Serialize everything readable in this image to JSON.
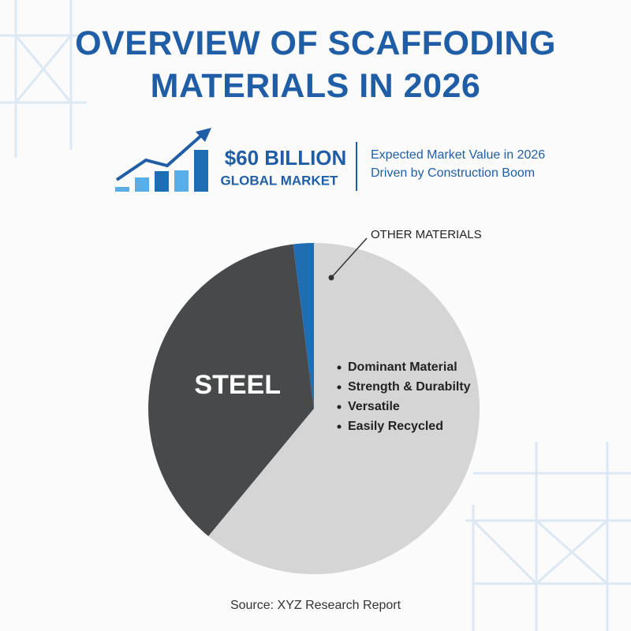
{
  "chart_data": {
    "type": "pie",
    "title": "OVERVIEW OF SCAFFODING MATERIALS IN 2026",
    "highlight": {
      "value": "$60 BILLION",
      "label": "GLOBAL MARKET",
      "notes": [
        "Expected Market Value in 2026",
        "Driven by Construction Boom"
      ]
    },
    "categories": [
      "OTHER MATERIALS",
      "STEEL",
      null
    ],
    "values": [
      61,
      37,
      2
    ],
    "colors": [
      "#d5d5d5",
      "#48494b",
      "#1f6db3"
    ],
    "annotations": [
      "Dominant Material",
      "Strength & Durabilty",
      "Versatile",
      "Easily Recycled"
    ],
    "source": "Source: XYZ Research Report"
  }
}
